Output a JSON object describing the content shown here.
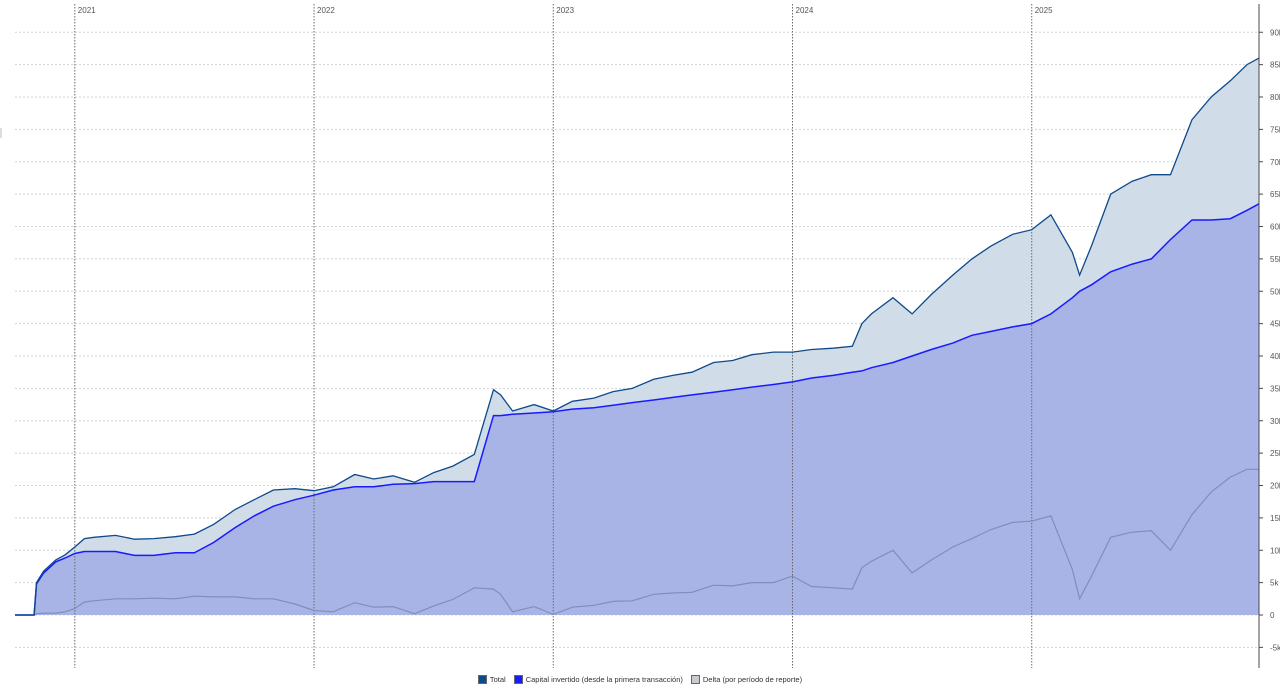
{
  "chart_data": {
    "type": "area",
    "title": "",
    "xlabel": "",
    "ylabel": "",
    "ylim": [
      -7500,
      92000
    ],
    "y_ticks": [
      -5000,
      0,
      5000,
      10000,
      15000,
      20000,
      25000,
      30000,
      35000,
      40000,
      45000,
      50000,
      55000,
      60000,
      65000,
      70000,
      75000,
      80000,
      85000,
      90000
    ],
    "y_tick_labels": [
      "-5k",
      "0",
      "5k",
      "10k",
      "15k",
      "20k",
      "25k",
      "30k",
      "35k",
      "40k",
      "45k",
      "50k",
      "55k",
      "60k",
      "65k",
      "70k",
      "75k",
      "80k",
      "85k",
      "90k"
    ],
    "x_ticks": [
      "2021",
      "2022",
      "2023",
      "2024",
      "2025"
    ],
    "x_tick_positions": [
      2021.0,
      2022.0,
      2023.0,
      2024.0,
      2025.0
    ],
    "xlim": [
      2020.75,
      2025.95
    ],
    "grid": true,
    "legend_position": "bottom",
    "x": [
      2020.75,
      2020.83,
      2020.84,
      2020.87,
      2020.92,
      2020.96,
      2021.0,
      2021.04,
      2021.08,
      2021.17,
      2021.25,
      2021.33,
      2021.42,
      2021.5,
      2021.58,
      2021.67,
      2021.75,
      2021.83,
      2021.92,
      2022.0,
      2022.08,
      2022.17,
      2022.25,
      2022.33,
      2022.42,
      2022.5,
      2022.58,
      2022.67,
      2022.75,
      2022.78,
      2022.83,
      2022.92,
      2023.0,
      2023.08,
      2023.17,
      2023.25,
      2023.33,
      2023.42,
      2023.5,
      2023.58,
      2023.67,
      2023.75,
      2023.83,
      2023.92,
      2024.0,
      2024.08,
      2024.17,
      2024.25,
      2024.29,
      2024.33,
      2024.42,
      2024.5,
      2024.58,
      2024.67,
      2024.75,
      2024.83,
      2024.92,
      2025.0,
      2025.08,
      2025.17,
      2025.2,
      2025.25,
      2025.33,
      2025.42,
      2025.5,
      2025.58,
      2025.67,
      2025.75,
      2025.83,
      2025.9,
      2025.95
    ],
    "series": [
      {
        "name": "Total",
        "color": "#0e4a8a",
        "values": [
          0,
          0,
          5000,
          6800,
          8500,
          9300,
          10500,
          11800,
          12000,
          12300,
          11700,
          11800,
          12100,
          12500,
          14000,
          16300,
          17800,
          19300,
          19500,
          19200,
          19800,
          21700,
          21000,
          21500,
          20500,
          22000,
          23000,
          24800,
          34800,
          34000,
          31500,
          32500,
          31500,
          33000,
          33500,
          34500,
          35000,
          36400,
          37000,
          37500,
          39000,
          39300,
          40200,
          40600,
          40600,
          41000,
          41200,
          41500,
          45000,
          46500,
          49000,
          46500,
          49500,
          52500,
          55000,
          57000,
          58800,
          59500,
          61800,
          56000,
          52500,
          57000,
          65000,
          67000,
          68000,
          68000,
          76500,
          80000,
          82500,
          85000,
          86000
        ]
      },
      {
        "name": "Capital invertido (desde la primera transacción)",
        "color": "#1a1aff",
        "values": [
          0,
          0,
          4800,
          6500,
          8200,
          8800,
          9500,
          9800,
          9800,
          9800,
          9200,
          9200,
          9600,
          9600,
          11200,
          13500,
          15300,
          16800,
          17800,
          18500,
          19300,
          19800,
          19800,
          20200,
          20300,
          20600,
          20600,
          20600,
          30800,
          30800,
          31000,
          31200,
          31400,
          31800,
          32000,
          32400,
          32800,
          33200,
          33600,
          34000,
          34400,
          34800,
          35200,
          35600,
          36000,
          36600,
          37000,
          37500,
          37700,
          38200,
          39000,
          40000,
          41000,
          42000,
          43200,
          43800,
          44500,
          45000,
          46500,
          49000,
          50000,
          51000,
          53000,
          54200,
          55000,
          58000,
          61000,
          61000,
          61200,
          62500,
          63500
        ]
      },
      {
        "name": "Delta (por período de reporte)",
        "color": "#7f8fb8",
        "values": [
          0,
          0,
          200,
          300,
          300,
          500,
          1000,
          2000,
          2200,
          2500,
          2500,
          2600,
          2500,
          2900,
          2800,
          2800,
          2500,
          2500,
          1700,
          700,
          500,
          1900,
          1200,
          1300,
          200,
          1400,
          2400,
          4200,
          4000,
          3200,
          500,
          1300,
          100,
          1200,
          1500,
          2100,
          2200,
          3200,
          3400,
          3500,
          4600,
          4500,
          5000,
          5000,
          6000,
          4400,
          4200,
          4000,
          7300,
          8300,
          10000,
          6500,
          8500,
          10500,
          11800,
          13200,
          14300,
          14500,
          15300,
          7000,
          2500,
          6000,
          12000,
          12800,
          13000,
          10000,
          15500,
          19000,
          21300,
          22500,
          22500
        ]
      }
    ]
  },
  "legend": {
    "items": [
      {
        "label": "Total",
        "color": "#0e4a8a"
      },
      {
        "label": "Capital invertido (desde la primera transacción)",
        "color": "#1a1aff"
      },
      {
        "label": "Delta (por período de reporte)",
        "color": "#c9cbd0"
      }
    ]
  },
  "colors": {
    "total_fill": "#d0dce8",
    "capital_fill": "#a8b4e6",
    "grid": "#cfd3d8",
    "year_line": "#6a6a6a",
    "axis": "#4a4a4a"
  }
}
